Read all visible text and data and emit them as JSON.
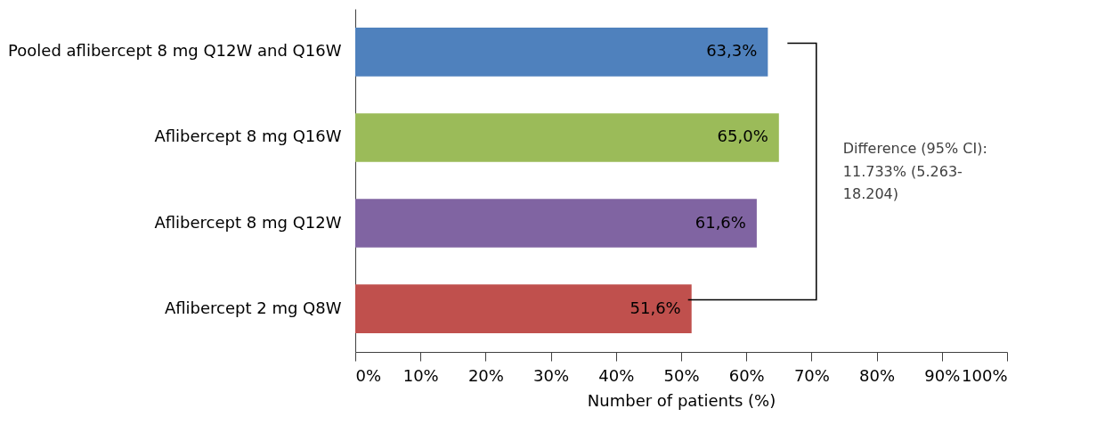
{
  "chart_data": {
    "type": "bar",
    "orientation": "horizontal",
    "categories": [
      "Pooled aflibercept 8 mg Q12W and Q16W",
      "Aflibercept 8 mg Q16W",
      "Aflibercept 8 mg Q12W",
      "Aflibercept 2 mg Q8W"
    ],
    "values": [
      63.3,
      65.0,
      61.6,
      51.6
    ],
    "colors": [
      "#4f81bd",
      "#9bbb59",
      "#8064a2",
      "#c0504d"
    ],
    "value_labels": [
      "63,3%",
      "65,0%",
      "61,6%",
      "51,6%"
    ],
    "xlim": [
      0,
      100
    ],
    "xticks": [
      {
        "value": 0,
        "label": "0%"
      },
      {
        "value": 10,
        "label": "10%"
      },
      {
        "value": 20,
        "label": "20%"
      },
      {
        "value": 30,
        "label": "30%"
      },
      {
        "value": 40,
        "label": "40%"
      },
      {
        "value": 50,
        "label": "50%"
      },
      {
        "value": 60,
        "label": "60%"
      },
      {
        "value": 70,
        "label": "70%"
      },
      {
        "value": 80,
        "label": "80%"
      },
      {
        "value": 90,
        "label": "90%"
      },
      {
        "value": 100,
        "label": "100%"
      }
    ],
    "xlabel": "Number of patients (%)",
    "annotations": [
      "Difference (95% CI): 11.733% (5.263-18.204)"
    ],
    "grid": false
  }
}
